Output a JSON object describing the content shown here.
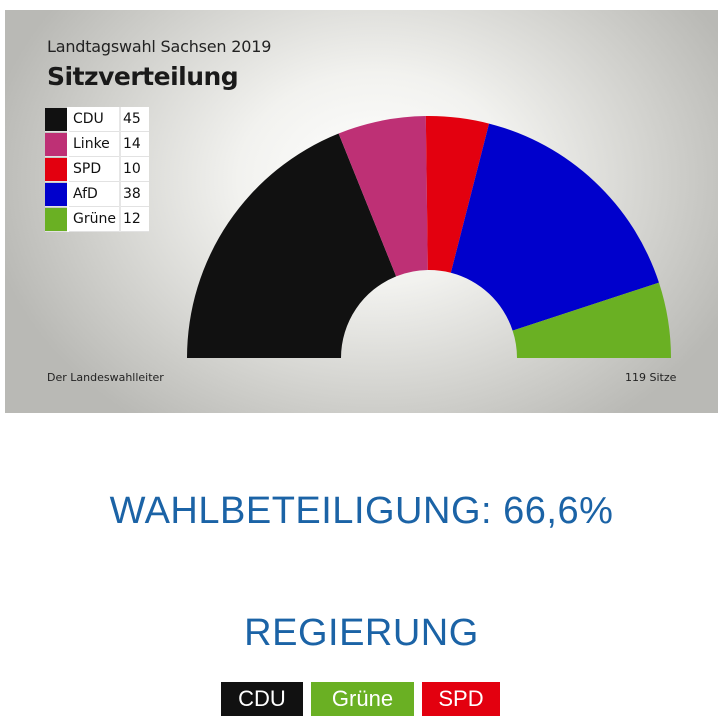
{
  "graphic": {
    "title": "Landtagswahl Sachsen 2019",
    "subtitle": "Sitzverteilung",
    "source": "Der Landeswahlleiter",
    "total": "119 Sitze"
  },
  "chart_data": {
    "type": "pie",
    "subtype": "parliament-semicircle",
    "title": "Landtagswahl Sachsen 2019",
    "subtitle": "Sitzverteilung",
    "total_seats": 119,
    "legend_position": "top-left",
    "series": [
      {
        "name": "CDU",
        "value": 45,
        "color": "#111111"
      },
      {
        "name": "Linke",
        "value": 14,
        "color": "#be3075"
      },
      {
        "name": "SPD",
        "value": 10,
        "color": "#e3000f"
      },
      {
        "name": "AfD",
        "value": 38,
        "color": "#0000cc"
      },
      {
        "name": "Grüne",
        "value": 12,
        "color": "#6ab023"
      }
    ]
  },
  "turnout": {
    "text": "WAHLBETEILIGUNG: 66,6%",
    "value": 66.6
  },
  "government": {
    "title": "REGIERUNG",
    "parties": [
      {
        "label": "CDU",
        "color": "#111111"
      },
      {
        "label": "Grüne",
        "color": "#6ab023"
      },
      {
        "label": "SPD",
        "color": "#e3000f"
      }
    ]
  }
}
